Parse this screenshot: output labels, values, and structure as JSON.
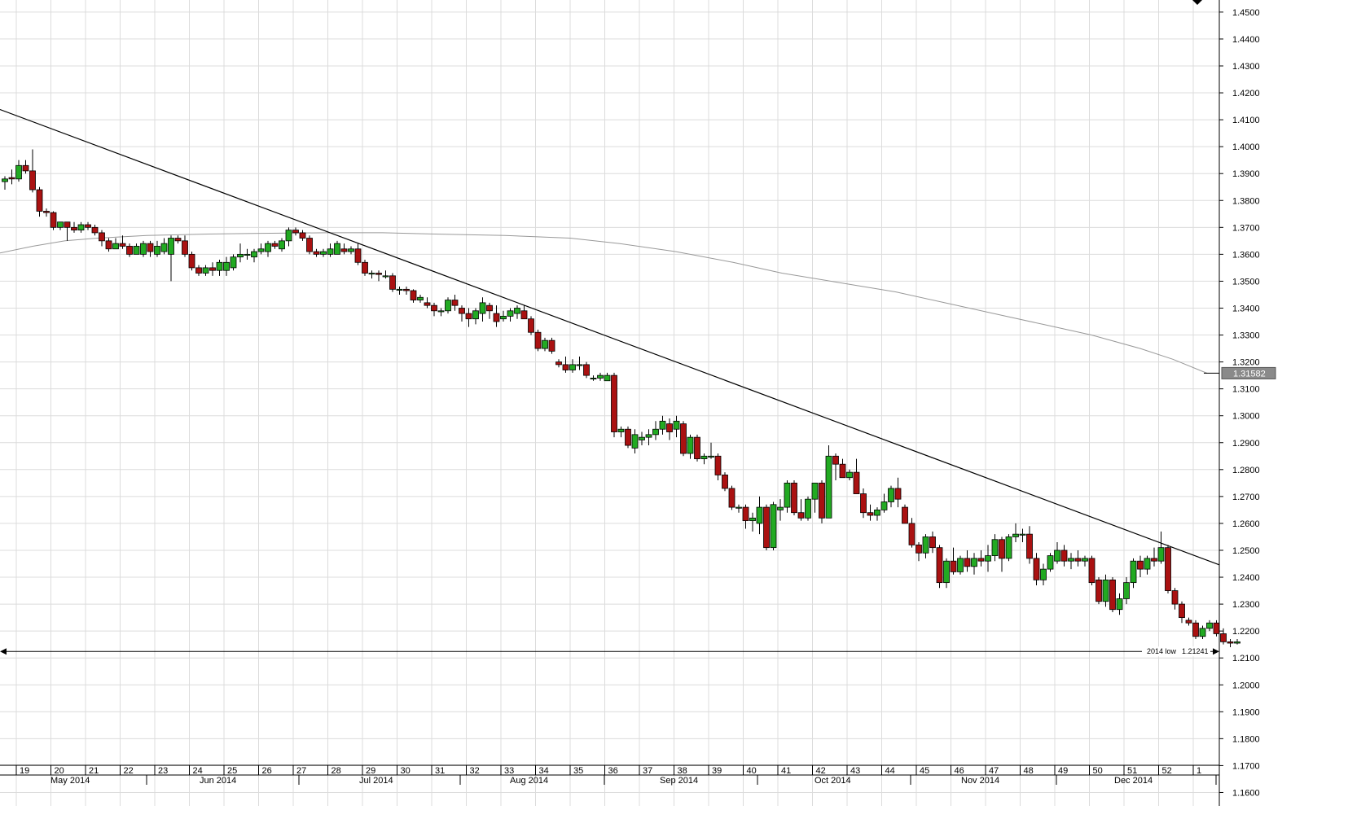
{
  "chart_data": {
    "type": "candlestick",
    "title": "",
    "y_axis": {
      "range": [
        1.155,
        1.4545
      ],
      "ticks": [
        "1.4500",
        "1.4400",
        "1.4300",
        "1.4200",
        "1.4100",
        "1.4000",
        "1.3900",
        "1.3800",
        "1.3700",
        "1.3600",
        "1.3500",
        "1.3400",
        "1.3300",
        "1.3200",
        "1.3100",
        "1.3000",
        "1.2900",
        "1.2800",
        "1.2700",
        "1.2600",
        "1.2500",
        "1.2400",
        "1.2300",
        "1.2200",
        "1.2100",
        "1.2000",
        "1.1900",
        "1.1800",
        "1.1700",
        "1.1600"
      ],
      "position": "right"
    },
    "x_axis": {
      "week_labels": [
        "19",
        "20",
        "21",
        "22",
        "23",
        "24",
        "25",
        "26",
        "27",
        "28",
        "29",
        "30",
        "31",
        "32",
        "33",
        "34",
        "35",
        "36",
        "37",
        "38",
        "39",
        "40",
        "41",
        "42",
        "43",
        "44",
        "45",
        "46",
        "47",
        "48",
        "49",
        "50",
        "51",
        "52",
        "1"
      ],
      "month_labels": [
        "May 2014",
        "Jun 2014",
        "Jul 2014",
        "Aug 2014",
        "Sep 2014",
        "Oct 2014",
        "Nov 2014",
        "Dec 2014"
      ]
    },
    "grid": true,
    "colors": {
      "up": "#22aa22",
      "down": "#aa1111",
      "outline": "#000000",
      "grid": "#dcdcdc",
      "ma": "#999999"
    },
    "candles": [
      [
        1.387,
        1.389,
        1.384,
        1.388
      ],
      [
        1.3885,
        1.3915,
        1.386,
        1.388
      ],
      [
        1.388,
        1.395,
        1.387,
        1.393
      ],
      [
        1.393,
        1.395,
        1.39,
        1.391
      ],
      [
        1.391,
        1.399,
        1.383,
        1.384
      ],
      [
        1.384,
        1.385,
        1.374,
        1.376
      ],
      [
        1.376,
        1.377,
        1.374,
        1.3755
      ],
      [
        1.3755,
        1.376,
        1.369,
        1.37
      ],
      [
        1.37,
        1.372,
        1.369,
        1.372
      ],
      [
        1.372,
        1.372,
        1.365,
        1.37
      ],
      [
        1.37,
        1.372,
        1.368,
        1.369
      ],
      [
        1.369,
        1.372,
        1.368,
        1.371
      ],
      [
        1.371,
        1.372,
        1.369,
        1.37
      ],
      [
        1.37,
        1.371,
        1.367,
        1.368
      ],
      [
        1.368,
        1.369,
        1.363,
        1.365
      ],
      [
        1.365,
        1.366,
        1.361,
        1.362
      ],
      [
        1.362,
        1.366,
        1.362,
        1.364
      ],
      [
        1.364,
        1.367,
        1.362,
        1.363
      ],
      [
        1.363,
        1.364,
        1.359,
        1.36
      ],
      [
        1.36,
        1.364,
        1.36,
        1.363
      ],
      [
        1.36,
        1.365,
        1.359,
        1.364
      ],
      [
        1.364,
        1.365,
        1.359,
        1.361
      ],
      [
        1.36,
        1.365,
        1.359,
        1.363
      ],
      [
        1.361,
        1.366,
        1.36,
        1.364
      ],
      [
        1.36,
        1.367,
        1.35,
        1.366
      ],
      [
        1.366,
        1.367,
        1.364,
        1.365
      ],
      [
        1.365,
        1.367,
        1.359,
        1.36
      ],
      [
        1.36,
        1.361,
        1.354,
        1.355
      ],
      [
        1.355,
        1.356,
        1.352,
        1.353
      ],
      [
        1.353,
        1.356,
        1.352,
        1.355
      ],
      [
        1.355,
        1.357,
        1.352,
        1.354
      ],
      [
        1.354,
        1.358,
        1.352,
        1.357
      ],
      [
        1.354,
        1.359,
        1.352,
        1.357
      ],
      [
        1.355,
        1.36,
        1.354,
        1.359
      ],
      [
        1.359,
        1.364,
        1.357,
        1.36
      ],
      [
        1.36,
        1.362,
        1.358,
        1.36
      ],
      [
        1.359,
        1.362,
        1.357,
        1.361
      ],
      [
        1.361,
        1.364,
        1.36,
        1.362
      ],
      [
        1.361,
        1.365,
        1.359,
        1.364
      ],
      [
        1.364,
        1.365,
        1.362,
        1.363
      ],
      [
        1.362,
        1.366,
        1.361,
        1.365
      ],
      [
        1.365,
        1.37,
        1.363,
        1.369
      ],
      [
        1.369,
        1.37,
        1.367,
        1.368
      ],
      [
        1.368,
        1.369,
        1.365,
        1.366
      ],
      [
        1.366,
        1.367,
        1.36,
        1.361
      ],
      [
        1.361,
        1.362,
        1.359,
        1.36
      ],
      [
        1.36,
        1.362,
        1.359,
        1.361
      ],
      [
        1.36,
        1.364,
        1.359,
        1.362
      ],
      [
        1.36,
        1.365,
        1.36,
        1.364
      ],
      [
        1.362,
        1.364,
        1.36,
        1.361
      ],
      [
        1.361,
        1.363,
        1.36,
        1.362
      ],
      [
        1.362,
        1.364,
        1.356,
        1.357
      ],
      [
        1.357,
        1.358,
        1.352,
        1.353
      ],
      [
        1.353,
        1.354,
        1.351,
        1.353
      ],
      [
        1.353,
        1.354,
        1.35,
        1.3525
      ],
      [
        1.352,
        1.354,
        1.351,
        1.352
      ],
      [
        1.352,
        1.353,
        1.346,
        1.347
      ],
      [
        1.347,
        1.348,
        1.345,
        1.347
      ],
      [
        1.347,
        1.348,
        1.345,
        1.3465
      ],
      [
        1.3465,
        1.347,
        1.342,
        1.343
      ],
      [
        1.343,
        1.345,
        1.342,
        1.344
      ],
      [
        1.342,
        1.344,
        1.34,
        1.341
      ],
      [
        1.341,
        1.342,
        1.337,
        1.339
      ],
      [
        1.339,
        1.34,
        1.337,
        1.339
      ],
      [
        1.339,
        1.344,
        1.338,
        1.343
      ],
      [
        1.343,
        1.345,
        1.339,
        1.341
      ],
      [
        1.34,
        1.341,
        1.335,
        1.338
      ],
      [
        1.338,
        1.34,
        1.333,
        1.336
      ],
      [
        1.336,
        1.34,
        1.334,
        1.339
      ],
      [
        1.338,
        1.344,
        1.335,
        1.342
      ],
      [
        1.341,
        1.342,
        1.336,
        1.339
      ],
      [
        1.338,
        1.341,
        1.333,
        1.335
      ],
      [
        1.336,
        1.339,
        1.335,
        1.337
      ],
      [
        1.337,
        1.34,
        1.335,
        1.339
      ],
      [
        1.338,
        1.341,
        1.336,
        1.34
      ],
      [
        1.339,
        1.341,
        1.336,
        1.336
      ],
      [
        1.336,
        1.337,
        1.33,
        1.331
      ],
      [
        1.331,
        1.332,
        1.324,
        1.325
      ],
      [
        1.325,
        1.329,
        1.324,
        1.328
      ],
      [
        1.328,
        1.329,
        1.323,
        1.324
      ],
      [
        1.32,
        1.321,
        1.318,
        1.319
      ],
      [
        1.319,
        1.322,
        1.316,
        1.317
      ],
      [
        1.317,
        1.321,
        1.316,
        1.319
      ],
      [
        1.319,
        1.322,
        1.317,
        1.319
      ],
      [
        1.319,
        1.32,
        1.314,
        1.315
      ],
      [
        1.314,
        1.315,
        1.313,
        1.314
      ],
      [
        1.314,
        1.316,
        1.313,
        1.315
      ],
      [
        1.313,
        1.316,
        1.313,
        1.315
      ],
      [
        1.315,
        1.316,
        1.292,
        1.294
      ],
      [
        1.294,
        1.296,
        1.292,
        1.295
      ],
      [
        1.295,
        1.296,
        1.288,
        1.289
      ],
      [
        1.288,
        1.295,
        1.286,
        1.293
      ],
      [
        1.291,
        1.294,
        1.289,
        1.292
      ],
      [
        1.292,
        1.295,
        1.289,
        1.293
      ],
      [
        1.293,
        1.298,
        1.291,
        1.295
      ],
      [
        1.295,
        1.3,
        1.293,
        1.298
      ],
      [
        1.297,
        1.299,
        1.291,
        1.294
      ],
      [
        1.295,
        1.3,
        1.292,
        1.298
      ],
      [
        1.297,
        1.298,
        1.285,
        1.286
      ],
      [
        1.286,
        1.293,
        1.284,
        1.292
      ],
      [
        1.292,
        1.293,
        1.283,
        1.284
      ],
      [
        1.284,
        1.286,
        1.282,
        1.285
      ],
      [
        1.285,
        1.29,
        1.284,
        1.285
      ],
      [
        1.285,
        1.286,
        1.276,
        1.278
      ],
      [
        1.278,
        1.279,
        1.272,
        1.273
      ],
      [
        1.273,
        1.274,
        1.265,
        1.266
      ],
      [
        1.266,
        1.267,
        1.264,
        1.266
      ],
      [
        1.266,
        1.267,
        1.258,
        1.261
      ],
      [
        1.261,
        1.264,
        1.257,
        1.262
      ],
      [
        1.26,
        1.27,
        1.256,
        1.266
      ],
      [
        1.266,
        1.267,
        1.25,
        1.251
      ],
      [
        1.251,
        1.268,
        1.25,
        1.267
      ],
      [
        1.265,
        1.269,
        1.261,
        1.266
      ],
      [
        1.266,
        1.276,
        1.264,
        1.275
      ],
      [
        1.275,
        1.276,
        1.263,
        1.264
      ],
      [
        1.264,
        1.269,
        1.261,
        1.262
      ],
      [
        1.262,
        1.27,
        1.261,
        1.269
      ],
      [
        1.269,
        1.275,
        1.264,
        1.275
      ],
      [
        1.275,
        1.276,
        1.26,
        1.262
      ],
      [
        1.262,
        1.289,
        1.262,
        1.285
      ],
      [
        1.285,
        1.286,
        1.276,
        1.282
      ],
      [
        1.282,
        1.284,
        1.277,
        1.277
      ],
      [
        1.277,
        1.28,
        1.276,
        1.279
      ],
      [
        1.279,
        1.284,
        1.271,
        1.271
      ],
      [
        1.271,
        1.273,
        1.262,
        1.264
      ],
      [
        1.264,
        1.267,
        1.261,
        1.263
      ],
      [
        1.263,
        1.266,
        1.261,
        1.265
      ],
      [
        1.265,
        1.271,
        1.264,
        1.268
      ],
      [
        1.268,
        1.274,
        1.266,
        1.273
      ],
      [
        1.273,
        1.277,
        1.266,
        1.269
      ],
      [
        1.266,
        1.267,
        1.26,
        1.26
      ],
      [
        1.26,
        1.262,
        1.251,
        1.252
      ],
      [
        1.252,
        1.253,
        1.246,
        1.249
      ],
      [
        1.249,
        1.256,
        1.247,
        1.255
      ],
      [
        1.255,
        1.257,
        1.249,
        1.251
      ],
      [
        1.251,
        1.252,
        1.236,
        1.238
      ],
      [
        1.238,
        1.247,
        1.236,
        1.246
      ],
      [
        1.246,
        1.251,
        1.241,
        1.242
      ],
      [
        1.242,
        1.248,
        1.241,
        1.247
      ],
      [
        1.247,
        1.25,
        1.242,
        1.244
      ],
      [
        1.244,
        1.249,
        1.241,
        1.247
      ],
      [
        1.247,
        1.25,
        1.244,
        1.246
      ],
      [
        1.246,
        1.252,
        1.242,
        1.248
      ],
      [
        1.248,
        1.256,
        1.246,
        1.254
      ],
      [
        1.254,
        1.255,
        1.242,
        1.247
      ],
      [
        1.247,
        1.256,
        1.246,
        1.255
      ],
      [
        1.255,
        1.26,
        1.253,
        1.256
      ],
      [
        1.256,
        1.258,
        1.253,
        1.256
      ],
      [
        1.256,
        1.259,
        1.245,
        1.247
      ],
      [
        1.247,
        1.249,
        1.237,
        1.239
      ],
      [
        1.239,
        1.245,
        1.237,
        1.243
      ],
      [
        1.243,
        1.249,
        1.242,
        1.248
      ],
      [
        1.246,
        1.253,
        1.245,
        1.25
      ],
      [
        1.25,
        1.252,
        1.244,
        1.246
      ],
      [
        1.246,
        1.249,
        1.243,
        1.247
      ],
      [
        1.247,
        1.25,
        1.244,
        1.246
      ],
      [
        1.246,
        1.248,
        1.244,
        1.247
      ],
      [
        1.247,
        1.248,
        1.237,
        1.238
      ],
      [
        1.239,
        1.24,
        1.23,
        1.231
      ],
      [
        1.231,
        1.241,
        1.229,
        1.239
      ],
      [
        1.239,
        1.24,
        1.227,
        1.228
      ],
      [
        1.228,
        1.234,
        1.226,
        1.232
      ],
      [
        1.232,
        1.24,
        1.23,
        1.238
      ],
      [
        1.238,
        1.247,
        1.236,
        1.246
      ],
      [
        1.246,
        1.248,
        1.24,
        1.243
      ],
      [
        1.243,
        1.248,
        1.241,
        1.247
      ],
      [
        1.247,
        1.251,
        1.244,
        1.246
      ],
      [
        1.246,
        1.257,
        1.245,
        1.251
      ],
      [
        1.251,
        1.252,
        1.234,
        1.235
      ],
      [
        1.235,
        1.236,
        1.228,
        1.23
      ],
      [
        1.23,
        1.231,
        1.223,
        1.225
      ],
      [
        1.224,
        1.225,
        1.222,
        1.223
      ],
      [
        1.223,
        1.224,
        1.217,
        1.218
      ],
      [
        1.218,
        1.222,
        1.217,
        1.221
      ],
      [
        1.221,
        1.224,
        1.22,
        1.223
      ],
      [
        1.223,
        1.224,
        1.218,
        1.219
      ],
      [
        1.219,
        1.221,
        1.215,
        1.216
      ],
      [
        1.216,
        1.217,
        1.214,
        1.2155
      ],
      [
        1.2155,
        1.217,
        1.215,
        1.216
      ]
    ],
    "moving_average": [
      [
        0,
        1.3605
      ],
      [
        40,
        1.363
      ],
      [
        80,
        1.365
      ],
      [
        120,
        1.366
      ],
      [
        180,
        1.367
      ],
      [
        250,
        1.3675
      ],
      [
        320,
        1.3678
      ],
      [
        400,
        1.368
      ],
      [
        470,
        1.368
      ],
      [
        540,
        1.3675
      ],
      [
        620,
        1.367
      ],
      [
        700,
        1.366
      ],
      [
        760,
        1.364
      ],
      [
        830,
        1.361
      ],
      [
        900,
        1.357
      ],
      [
        960,
        1.353
      ],
      [
        1040,
        1.349
      ],
      [
        1100,
        1.346
      ],
      [
        1160,
        1.342
      ],
      [
        1220,
        1.338
      ],
      [
        1280,
        1.334
      ],
      [
        1340,
        1.33
      ],
      [
        1400,
        1.325
      ],
      [
        1440,
        1.321
      ],
      [
        1482,
        1.3158
      ]
    ],
    "trendline": {
      "start": [
        0,
        1.4138
      ],
      "end": [
        1497,
        1.2446
      ]
    },
    "horizontal_line": {
      "value": 1.21241,
      "label": "2014 low",
      "value_label": "1.21241"
    },
    "current_price": "1.31582"
  }
}
